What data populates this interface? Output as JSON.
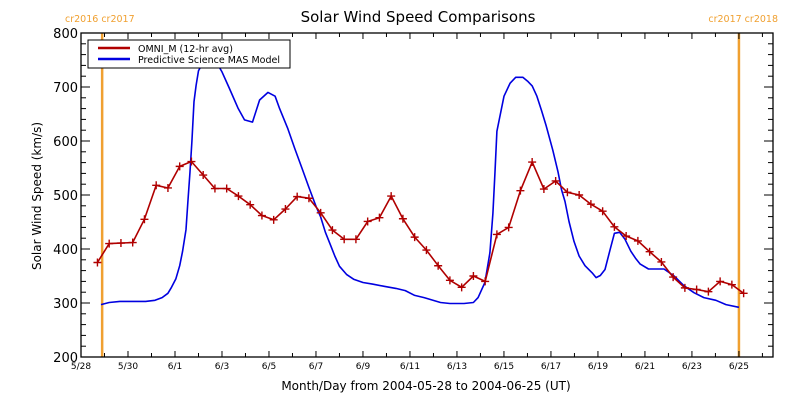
{
  "chart_data": {
    "type": "line",
    "title": "Solar Wind Speed Comparisons",
    "xlabel": "Month/Day from 2004-05-28 to 2004-06-25 (UT)",
    "ylabel": "Solar Wind Speed (km/s)",
    "x_units": "days since 2004-05-28 00:00 UT",
    "xlim": [
      0,
      29.45
    ],
    "ylim": [
      200,
      800
    ],
    "x_ticks": [
      {
        "day": 0,
        "label": "5/28"
      },
      {
        "day": 2,
        "label": "5/30"
      },
      {
        "day": 4,
        "label": "6/1"
      },
      {
        "day": 6,
        "label": "6/3"
      },
      {
        "day": 8,
        "label": "6/5"
      },
      {
        "day": 10,
        "label": "6/7"
      },
      {
        "day": 12,
        "label": "6/9"
      },
      {
        "day": 14,
        "label": "6/11"
      },
      {
        "day": 16,
        "label": "6/13"
      },
      {
        "day": 18,
        "label": "6/15"
      },
      {
        "day": 20,
        "label": "6/17"
      },
      {
        "day": 22,
        "label": "6/19"
      },
      {
        "day": 24,
        "label": "6/21"
      },
      {
        "day": 26,
        "label": "6/23"
      },
      {
        "day": 28,
        "label": "6/25"
      }
    ],
    "x_minor_step": 1,
    "y_ticks": [
      200,
      300,
      400,
      500,
      600,
      700,
      800
    ],
    "y_minor_step": 20,
    "grid": false,
    "legend_position": "top-left",
    "colors": {
      "omni": "#b00000",
      "mas": "#0000e0",
      "rotation": "#f0a030"
    },
    "carrington_markers": [
      {
        "day": 0.9,
        "label": "cr2016 cr2017"
      },
      {
        "day": 28.0,
        "label": "cr2017 cr2018"
      }
    ],
    "series": [
      {
        "name": "OMNI_M (12-hr avg)",
        "markers": "plus",
        "x": [
          0.7,
          1.2,
          1.7,
          2.2,
          2.7,
          3.2,
          3.7,
          4.2,
          4.7,
          5.2,
          5.7,
          6.2,
          6.7,
          7.2,
          7.7,
          8.2,
          8.7,
          9.2,
          9.7,
          10.2,
          10.7,
          11.2,
          11.7,
          12.2,
          12.7,
          13.2,
          13.7,
          14.2,
          14.7,
          15.2,
          15.7,
          16.2,
          16.7,
          17.2,
          17.7,
          18.2,
          18.7,
          19.2,
          19.7,
          20.2,
          20.7,
          21.2,
          21.7,
          22.2,
          22.7,
          23.2,
          23.7,
          24.2,
          24.7,
          25.2,
          25.7,
          26.2,
          26.7,
          27.2,
          27.7,
          28.2
        ],
        "values": [
          375,
          410,
          411,
          412,
          455,
          518,
          513,
          553,
          562,
          537,
          512,
          512,
          498,
          482,
          462,
          454,
          474,
          497,
          494,
          467,
          435,
          418,
          418,
          451,
          458,
          498,
          456,
          422,
          398,
          369,
          342,
          329,
          350,
          340,
          427,
          440,
          508,
          561,
          511,
          526,
          505,
          500,
          483,
          470,
          441,
          424,
          415,
          395,
          376,
          348,
          328,
          325,
          321,
          340,
          334,
          318
        ]
      },
      {
        "name": "Predictive Science MAS Model",
        "markers": "none",
        "x": [
          0.85,
          1.2,
          1.65,
          2.3,
          2.75,
          3.15,
          3.45,
          3.7,
          3.85,
          4.04,
          4.2,
          4.32,
          4.47,
          4.55,
          4.64,
          4.72,
          4.81,
          4.9,
          5.0,
          5.2,
          5.6,
          5.8,
          6.0,
          6.3,
          6.68,
          6.96,
          7.3,
          7.6,
          7.96,
          8.26,
          8.45,
          8.8,
          9.1,
          9.4,
          9.7,
          10.0,
          10.2,
          10.4,
          10.6,
          10.8,
          11.0,
          11.3,
          11.6,
          12.0,
          12.4,
          12.9,
          13.4,
          13.8,
          14.2,
          14.6,
          15.3,
          15.7,
          16.3,
          16.7,
          16.9,
          17.19,
          17.4,
          17.53,
          17.62,
          17.7,
          17.8,
          18.0,
          18.26,
          18.5,
          18.8,
          19.0,
          19.2,
          19.4,
          19.6,
          19.8,
          20.08,
          20.3,
          20.45,
          20.6,
          20.77,
          20.98,
          21.2,
          21.45,
          21.75,
          21.92,
          22.1,
          22.3,
          22.5,
          22.7,
          22.92,
          23.15,
          23.4,
          23.6,
          23.8,
          24.15,
          24.4,
          24.81,
          25.24,
          25.66,
          26.09,
          26.51,
          27.02,
          27.45,
          28.0
        ],
        "values": [
          297,
          301,
          303,
          303,
          303,
          305,
          310,
          318,
          329,
          345,
          369,
          395,
          436,
          488,
          543,
          599,
          673,
          703,
          730,
          746,
          750,
          743,
          728,
          699,
          661,
          639,
          635,
          676,
          690,
          683,
          660,
          623,
          586,
          550,
          514,
          479,
          459,
          431,
          409,
          387,
          368,
          353,
          344,
          338,
          335,
          331,
          327,
          323,
          314,
          310,
          301,
          299,
          299,
          301,
          310,
          338,
          393,
          466,
          543,
          618,
          640,
          683,
          707,
          718,
          718,
          711,
          702,
          683,
          656,
          628,
          583,
          543,
          510,
          488,
          451,
          414,
          387,
          369,
          356,
          347,
          351,
          362,
          396,
          429,
          431,
          418,
          396,
          383,
          372,
          363,
          363,
          363,
          350,
          332,
          319,
          310,
          305,
          297,
          292
        ]
      }
    ]
  }
}
